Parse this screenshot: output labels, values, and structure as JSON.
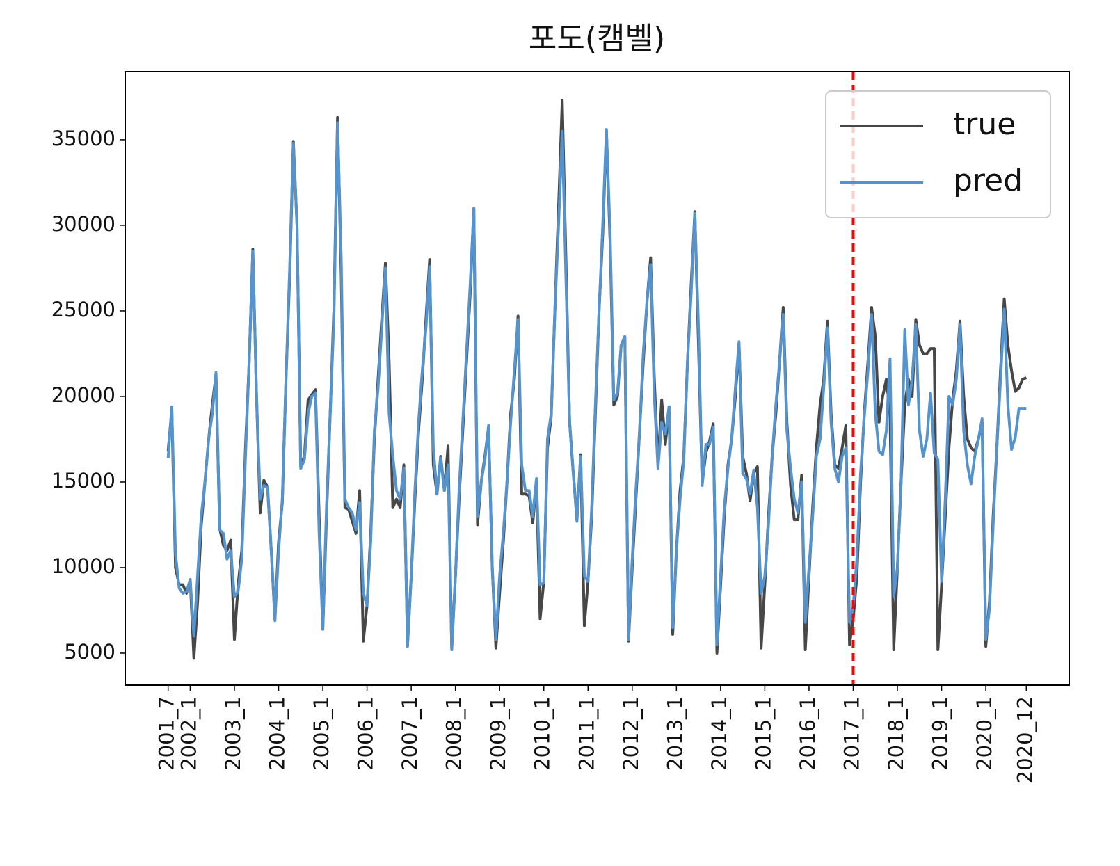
{
  "chart_data": {
    "type": "line",
    "title": "포도(캠벨)",
    "categories": [
      "2001_7",
      null,
      null,
      null,
      null,
      null,
      "2002_1",
      null,
      null,
      null,
      null,
      null,
      null,
      null,
      null,
      null,
      null,
      null,
      "2003_1",
      null,
      null,
      null,
      null,
      null,
      null,
      null,
      null,
      null,
      null,
      null,
      "2004_1",
      null,
      null,
      null,
      null,
      null,
      null,
      null,
      null,
      null,
      null,
      null,
      "2005_1",
      null,
      null,
      null,
      null,
      null,
      null,
      null,
      null,
      null,
      null,
      null,
      "2006_1",
      null,
      null,
      null,
      null,
      null,
      null,
      null,
      null,
      null,
      null,
      null,
      "2007_1",
      null,
      null,
      null,
      null,
      null,
      null,
      null,
      null,
      null,
      null,
      null,
      "2008_1",
      null,
      null,
      null,
      null,
      null,
      null,
      null,
      null,
      null,
      null,
      null,
      "2009_1",
      null,
      null,
      null,
      null,
      null,
      null,
      null,
      null,
      null,
      null,
      null,
      "2010_1",
      null,
      null,
      null,
      null,
      null,
      null,
      null,
      null,
      null,
      null,
      null,
      "2011_1",
      null,
      null,
      null,
      null,
      null,
      null,
      null,
      null,
      null,
      null,
      null,
      "2012_1",
      null,
      null,
      null,
      null,
      null,
      null,
      null,
      null,
      null,
      null,
      null,
      "2013_1",
      null,
      null,
      null,
      null,
      null,
      null,
      null,
      null,
      null,
      null,
      null,
      "2014_1",
      null,
      null,
      null,
      null,
      null,
      null,
      null,
      null,
      null,
      null,
      null,
      "2015_1",
      null,
      null,
      null,
      null,
      null,
      null,
      null,
      null,
      null,
      null,
      null,
      "2016_1",
      null,
      null,
      null,
      null,
      null,
      null,
      null,
      null,
      null,
      null,
      null,
      "2017_1",
      null,
      null,
      null,
      null,
      null,
      null,
      null,
      null,
      null,
      null,
      null,
      "2018_1",
      null,
      null,
      null,
      null,
      null,
      null,
      null,
      null,
      null,
      null,
      null,
      "2019_1",
      null,
      null,
      null,
      null,
      null,
      null,
      null,
      null,
      null,
      null,
      null,
      "2020_1",
      null,
      null,
      null,
      null,
      null,
      null,
      null,
      null,
      null,
      null,
      "2020_12"
    ],
    "series": [
      {
        "name": "true",
        "color": "#474747",
        "values": [
          16800,
          19200,
          10000,
          9000,
          9000,
          8500,
          9300,
          4700,
          8000,
          12500,
          15000,
          17500,
          19500,
          21300,
          12300,
          11300,
          11000,
          11600,
          5800,
          9000,
          11000,
          17000,
          22000,
          28600,
          20000,
          13200,
          15100,
          14700,
          11000,
          7000,
          11500,
          13800,
          21000,
          27000,
          34900,
          30000,
          15900,
          16500,
          19800,
          20100,
          20400,
          13000,
          6400,
          13000,
          19000,
          25000,
          36300,
          27000,
          13500,
          13400,
          12700,
          12000,
          14500,
          5700,
          7800,
          12000,
          17500,
          21000,
          24500,
          27800,
          22000,
          13500,
          14000,
          13500,
          16000,
          5500,
          9500,
          14000,
          18000,
          21000,
          24500,
          28000,
          16000,
          14300,
          16500,
          14500,
          17100,
          5300,
          9500,
          14000,
          18000,
          22000,
          26000,
          31000,
          12500,
          15000,
          16500,
          18200,
          10000,
          5300,
          8500,
          11500,
          15000,
          19000,
          21000,
          24700,
          14300,
          14300,
          14200,
          12600,
          15000,
          7000,
          9200,
          17000,
          18800,
          25000,
          31000,
          37300,
          28000,
          18500,
          15500,
          12800,
          16600,
          6600,
          9200,
          13000,
          19000,
          25000,
          29500,
          35500,
          29000,
          19500,
          20000,
          23000,
          23500,
          5700,
          10000,
          14000,
          18000,
          22000,
          25500,
          28100,
          21000,
          16000,
          19800,
          17200,
          19400,
          6100,
          11000,
          14500,
          16500,
          22000,
          26500,
          30800,
          23000,
          14900,
          16700,
          17400,
          18400,
          5000,
          9000,
          13000,
          16000,
          17500,
          20000,
          23100,
          16500,
          15500,
          13900,
          15500,
          15900,
          5300,
          9000,
          13000,
          16500,
          19000,
          22000,
          25200,
          18500,
          14800,
          12800,
          12800,
          15400,
          5200,
          9500,
          13500,
          17000,
          19500,
          21000,
          24400,
          19000,
          16000,
          15800,
          17000,
          18300,
          5500,
          7000,
          9500,
          15000,
          19000,
          22000,
          25200,
          23500,
          18500,
          20000,
          21000,
          19000,
          5200,
          10000,
          15000,
          19500,
          21000,
          20000,
          24500,
          23000,
          22500,
          22500,
          22800,
          22800,
          5200,
          9000,
          13000,
          17000,
          19800,
          21500,
          24400,
          20000,
          17500,
          17000,
          16800,
          17500,
          18500,
          5400,
          8000,
          13000,
          17000,
          21500,
          25700,
          23000,
          21500,
          20300,
          20500,
          21000,
          21100
        ]
      },
      {
        "name": "pred",
        "color": "#5493ce",
        "values": [
          16400,
          19400,
          10800,
          8800,
          8500,
          8600,
          9300,
          6000,
          9500,
          13000,
          15000,
          17500,
          19000,
          21400,
          12200,
          12000,
          10500,
          11000,
          8300,
          8600,
          10500,
          16500,
          22000,
          28500,
          20000,
          14000,
          14800,
          14700,
          11000,
          6900,
          11000,
          14000,
          21000,
          27500,
          34800,
          30000,
          15800,
          16300,
          19000,
          20000,
          20200,
          12000,
          6400,
          13500,
          19000,
          24500,
          36000,
          28000,
          14000,
          13500,
          13200,
          12200,
          13800,
          8500,
          7800,
          11500,
          18000,
          20500,
          24000,
          27500,
          19000,
          16500,
          14500,
          14000,
          15800,
          5400,
          9500,
          14500,
          18500,
          21500,
          24000,
          27600,
          17000,
          14300,
          16400,
          14500,
          16000,
          5200,
          9500,
          14500,
          18500,
          22500,
          26500,
          31000,
          13000,
          15000,
          16300,
          18300,
          10000,
          5800,
          9500,
          12000,
          15000,
          18500,
          21500,
          24500,
          16000,
          14500,
          14500,
          13000,
          15200,
          9000,
          9100,
          17500,
          19000,
          25000,
          30000,
          35500,
          27000,
          18500,
          15500,
          12700,
          16500,
          9500,
          9200,
          13500,
          19500,
          25000,
          30000,
          35600,
          29500,
          19800,
          20200,
          23000,
          23500,
          5800,
          10500,
          14500,
          18000,
          22500,
          25500,
          27700,
          20000,
          15800,
          18500,
          17800,
          19400,
          6500,
          11000,
          14000,
          16300,
          22000,
          26000,
          30700,
          24000,
          14800,
          17200,
          17200,
          18200,
          5500,
          9500,
          13500,
          15800,
          17500,
          20500,
          23200,
          15500,
          15200,
          14300,
          15700,
          13500,
          8500,
          9500,
          12500,
          16500,
          19500,
          22000,
          24800,
          18000,
          15800,
          14000,
          13200,
          15000,
          6800,
          10000,
          13000,
          16500,
          17500,
          20500,
          24000,
          18500,
          15800,
          15000,
          16500,
          17000,
          6800,
          7700,
          10500,
          15500,
          18800,
          21500,
          24800,
          19000,
          16800,
          16600,
          18000,
          22200,
          8300,
          10000,
          15000,
          23900,
          19500,
          21000,
          24200,
          18000,
          16500,
          17500,
          20200,
          16700,
          16300,
          9200,
          14000,
          20000,
          19500,
          21000,
          24200,
          18000,
          16000,
          14900,
          16500,
          17500,
          18700,
          5800,
          7600,
          12500,
          17000,
          21000,
          25100,
          19500,
          16900,
          17600,
          19300,
          19300,
          19300
        ]
      }
    ],
    "ylim": [
      3130,
      38980
    ],
    "yticks": [
      5000,
      10000,
      15000,
      20000,
      25000,
      30000,
      35000
    ],
    "vline": {
      "x": 186,
      "color": "#ff0000"
    },
    "legend": "upper right",
    "grid": false
  }
}
